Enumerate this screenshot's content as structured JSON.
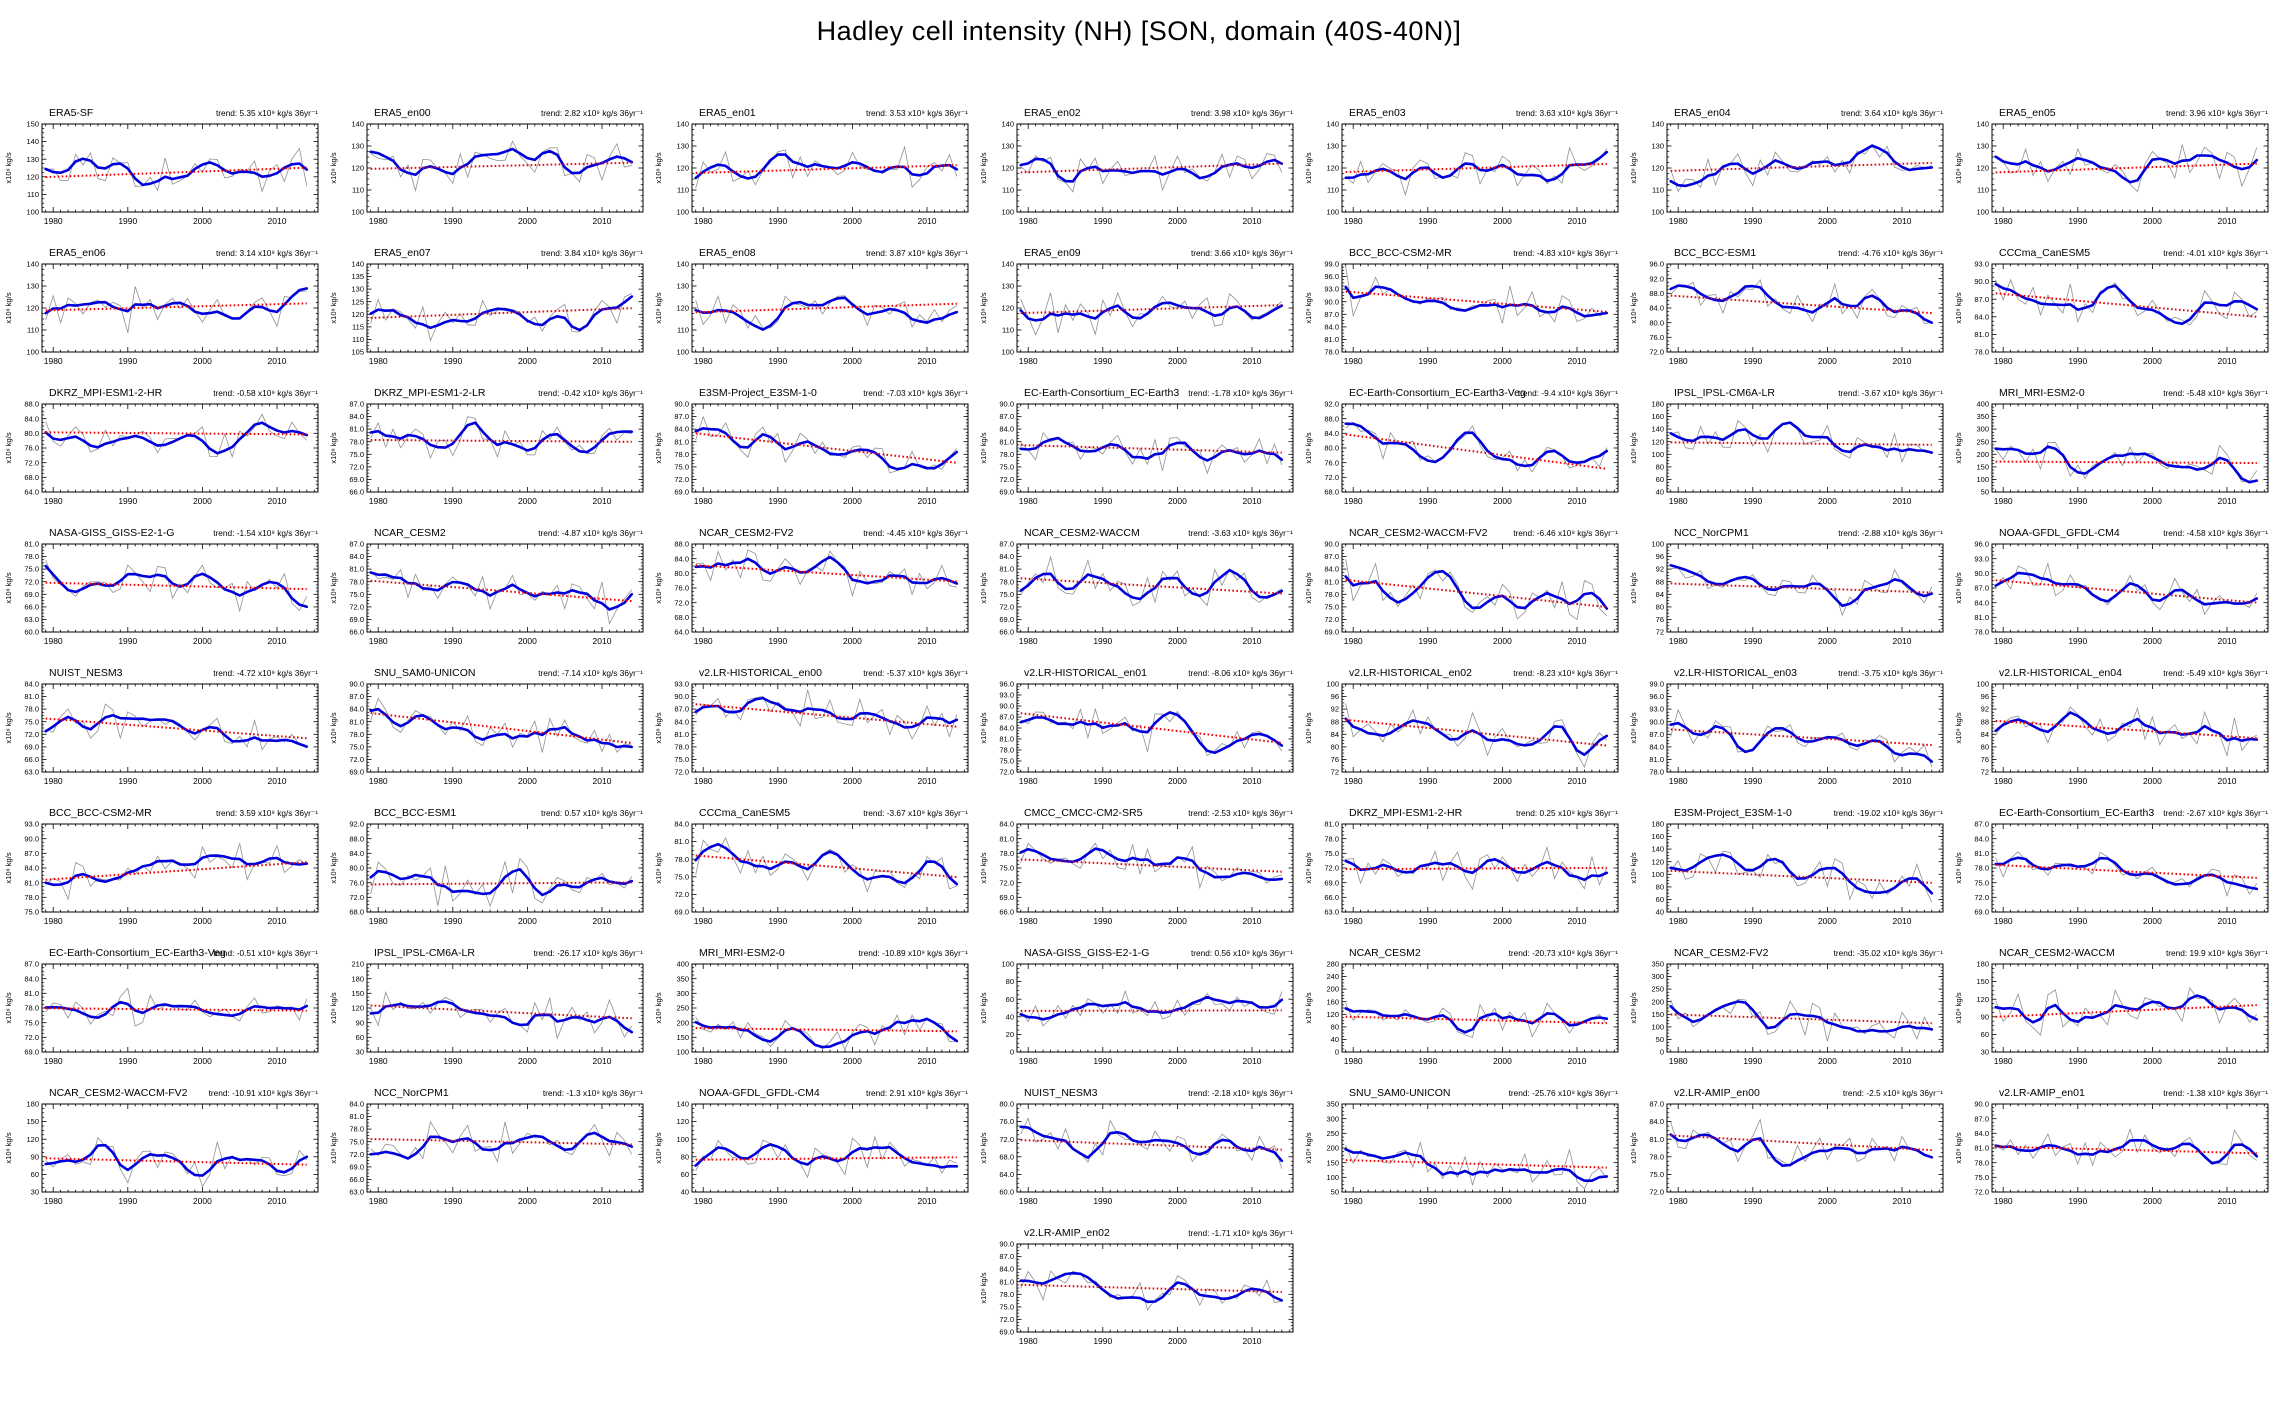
{
  "page_title": "Hadley cell intensity (NH) [SON, domain (40S-40N)]",
  "chart_data": {
    "type": "line",
    "title": "Hadley cell intensity (NH) [SON, domain (40S-40N)]",
    "x_start": 1979,
    "x_end": 2014,
    "x_ticks": [
      1980,
      1990,
      2000,
      2010
    ],
    "y_axis_label": "x10⁹ kg/s",
    "grid": false,
    "series_style": [
      {
        "name": "annual value",
        "color": "#909090",
        "width": "thin"
      },
      {
        "name": "smoothed (running mean)",
        "color": "#0000dd",
        "width": "thick"
      },
      {
        "name": "linear trend",
        "color": "#ee0000",
        "style": "dotted"
      }
    ],
    "panels": [
      {
        "title": "ERA5-SF",
        "trend_label": "trend: 5.35 x10⁹ kg/s 36yr⁻¹",
        "trend": 5.35,
        "mean": 122.5,
        "ymin": 100,
        "ymax": 150,
        "ystep": 10,
        "dec": 0
      },
      {
        "title": "ERA5_en00",
        "trend_label": "trend: 2.82 x10⁹ kg/s 36yr⁻¹",
        "trend": 2.82,
        "mean": 121,
        "ymin": 100,
        "ymax": 140,
        "ystep": 10,
        "dec": 0
      },
      {
        "title": "ERA5_en01",
        "trend_label": "trend: 3.53 x10⁹ kg/s 36yr⁻¹",
        "trend": 3.53,
        "mean": 119.5,
        "ymin": 100,
        "ymax": 140,
        "ystep": 10,
        "dec": 0
      },
      {
        "title": "ERA5_en02",
        "trend_label": "trend: 3.98 x10⁹ kg/s 36yr⁻¹",
        "trend": 3.98,
        "mean": 120,
        "ymin": 100,
        "ymax": 140,
        "ystep": 10,
        "dec": 0
      },
      {
        "title": "ERA5_en03",
        "trend_label": "trend: 3.63 x10⁹ kg/s 36yr⁻¹",
        "trend": 3.63,
        "mean": 120,
        "ymin": 100,
        "ymax": 140,
        "ystep": 10,
        "dec": 0
      },
      {
        "title": "ERA5_en04",
        "trend_label": "trend: 3.64 x10⁹ kg/s 36yr⁻¹",
        "trend": 3.64,
        "mean": 120.5,
        "ymin": 100,
        "ymax": 140,
        "ystep": 10,
        "dec": 0
      },
      {
        "title": "ERA5_en05",
        "trend_label": "trend: 3.96 x10⁹ kg/s 36yr⁻¹",
        "trend": 3.96,
        "mean": 120,
        "ymin": 100,
        "ymax": 140,
        "ystep": 10,
        "dec": 0
      },
      {
        "title": "ERA5_en06",
        "trend_label": "trend: 3.14 x10⁹ kg/s 36yr⁻¹",
        "trend": 3.14,
        "mean": 120.5,
        "ymin": 100,
        "ymax": 140,
        "ystep": 10,
        "dec": 0
      },
      {
        "title": "ERA5_en07",
        "trend_label": "trend: 3.84 x10⁹ kg/s 36yr⁻¹",
        "trend": 3.84,
        "mean": 120.5,
        "ymin": 105,
        "ymax": 140,
        "ystep": 5,
        "dec": 0
      },
      {
        "title": "ERA5_en08",
        "trend_label": "trend: 3.87 x10⁹ kg/s 36yr⁻¹",
        "trend": 3.87,
        "mean": 120,
        "ymin": 100,
        "ymax": 140,
        "ystep": 10,
        "dec": 0
      },
      {
        "title": "ERA5_en09",
        "trend_label": "trend: 3.66 x10⁹ kg/s 36yr⁻¹",
        "trend": 3.66,
        "mean": 119.5,
        "ymin": 100,
        "ymax": 140,
        "ystep": 10,
        "dec": 0
      },
      {
        "title": "BCC_BCC-CSM2-MR",
        "trend_label": "trend: -4.83 x10⁹ kg/s 36yr⁻¹",
        "trend": -4.83,
        "mean": 90,
        "ymin": 78,
        "ymax": 99,
        "ystep": 3,
        "dec": 1
      },
      {
        "title": "BCC_BCC-ESM1",
        "trend_label": "trend: -4.76 x10⁹ kg/s 36yr⁻¹",
        "trend": -4.76,
        "mean": 85,
        "ymin": 72,
        "ymax": 96,
        "ystep": 4,
        "dec": 1
      },
      {
        "title": "CCCma_CanESM5",
        "trend_label": "trend: -4.01 x10⁹ kg/s 36yr⁻¹",
        "trend": -4.01,
        "mean": 86,
        "ymin": 78,
        "ymax": 93,
        "ystep": 3,
        "dec": 1
      },
      {
        "title": "DKRZ_MPI-ESM1-2-HR",
        "trend_label": "trend: -0.58 x10⁹ kg/s 36yr⁻¹",
        "trend": -0.58,
        "mean": 80,
        "ymin": 64,
        "ymax": 88,
        "ystep": 4,
        "dec": 1
      },
      {
        "title": "DKRZ_MPI-ESM1-2-LR",
        "trend_label": "trend: -0.42 x10⁹ kg/s 36yr⁻¹",
        "trend": -0.42,
        "mean": 78.2,
        "ymin": 66,
        "ymax": 87,
        "ystep": 3,
        "dec": 1
      },
      {
        "title": "E3SM-Project_E3SM-1-0",
        "trend_label": "trend: -7.03 x10⁹ kg/s 36yr⁻¹",
        "trend": -7.03,
        "mean": 79.5,
        "ymin": 69,
        "ymax": 90,
        "ystep": 3,
        "dec": 1
      },
      {
        "title": "EC-Earth-Consortium_EC-Earth3",
        "trend_label": "trend: -1.78 x10⁹ kg/s 36yr⁻¹",
        "trend": -1.78,
        "mean": 79.3,
        "ymin": 69,
        "ymax": 90,
        "ystep": 3,
        "dec": 1
      },
      {
        "title": "EC-Earth-Consortium_EC-Earth3-Veg",
        "trend_label": "trend: -9.4 x10⁹ kg/s 36yr⁻¹",
        "trend": -9.4,
        "mean": 79,
        "ymin": 68,
        "ymax": 92,
        "ystep": 4,
        "dec": 1
      },
      {
        "title": "IPSL_IPSL-CM6A-LR",
        "trend_label": "trend: -3.67 x10⁹ kg/s 36yr⁻¹",
        "trend": -3.67,
        "mean": 117,
        "ymin": 40,
        "ymax": 180,
        "ystep": 20,
        "dec": 0
      },
      {
        "title": "MRI_MRI-ESM2-0",
        "trend_label": "trend: -5.48 x10⁹ kg/s 36yr⁻¹",
        "trend": -5.48,
        "mean": 168,
        "ymin": 50,
        "ymax": 400,
        "ystep": 50,
        "dec": 0
      },
      {
        "title": "NASA-GISS_GISS-E2-1-G",
        "trend_label": "trend: -1.54 x10⁹ kg/s 36yr⁻¹",
        "trend": -1.54,
        "mean": 71,
        "ymin": 60,
        "ymax": 81,
        "ystep": 3,
        "dec": 1
      },
      {
        "title": "NCAR_CESM2",
        "trend_label": "trend: -4.87 x10⁹ kg/s 36yr⁻¹",
        "trend": -4.87,
        "mean": 75.8,
        "ymin": 66,
        "ymax": 87,
        "ystep": 3,
        "dec": 1
      },
      {
        "title": "NCAR_CESM2-FV2",
        "trend_label": "trend: -4.45 x10⁹ kg/s 36yr⁻¹",
        "trend": -4.45,
        "mean": 80,
        "ymin": 64,
        "ymax": 88,
        "ystep": 4,
        "dec": 1
      },
      {
        "title": "NCAR_CESM2-WACCM",
        "trend_label": "trend: -3.63 x10⁹ kg/s 36yr⁻¹",
        "trend": -3.63,
        "mean": 77,
        "ymin": 66,
        "ymax": 87,
        "ystep": 3,
        "dec": 1
      },
      {
        "title": "NCAR_CESM2-WACCM-FV2",
        "trend_label": "trend: -6.46 x10⁹ kg/s 36yr⁻¹",
        "trend": -6.46,
        "mean": 78.2,
        "ymin": 69,
        "ymax": 90,
        "ystep": 3,
        "dec": 1
      },
      {
        "title": "NCC_NorCPM1",
        "trend_label": "trend: -2.88 x10⁹ kg/s 36yr⁻¹",
        "trend": -2.88,
        "mean": 86,
        "ymin": 72,
        "ymax": 100,
        "ystep": 4,
        "dec": 0
      },
      {
        "title": "NOAA-GFDL_GFDL-CM4",
        "trend_label": "trend: -4.58 x10⁹ kg/s 36yr⁻¹",
        "trend": -4.58,
        "mean": 86.3,
        "ymin": 78,
        "ymax": 96,
        "ystep": 3,
        "dec": 1
      },
      {
        "title": "NUIST_NESM3",
        "trend_label": "trend: -4.72 x10⁹ kg/s 36yr⁻¹",
        "trend": -4.72,
        "mean": 73.4,
        "ymin": 63,
        "ymax": 84,
        "ystep": 3,
        "dec": 1
      },
      {
        "title": "SNU_SAM0-UNICON",
        "trend_label": "trend: -7.14 x10⁹ kg/s 36yr⁻¹",
        "trend": -7.14,
        "mean": 79.5,
        "ymin": 69,
        "ymax": 90,
        "ystep": 3,
        "dec": 1
      },
      {
        "title": "v2.LR-HISTORICAL_en00",
        "trend_label": "trend: -5.37 x10⁹ kg/s 36yr⁻¹",
        "trend": -5.37,
        "mean": 85.5,
        "ymin": 72,
        "ymax": 93,
        "ystep": 3,
        "dec": 1
      },
      {
        "title": "v2.LR-HISTORICAL_en01",
        "trend_label": "trend: -8.06 x10⁹ kg/s 36yr⁻¹",
        "trend": -8.06,
        "mean": 84,
        "ymin": 72,
        "ymax": 96,
        "ystep": 3,
        "dec": 1
      },
      {
        "title": "v2.LR-HISTORICAL_en02",
        "trend_label": "trend: -8.23 x10⁹ kg/s 36yr⁻¹",
        "trend": -8.23,
        "mean": 84.5,
        "ymin": 72,
        "ymax": 100,
        "ystep": 4,
        "dec": 0
      },
      {
        "title": "v2.LR-HISTORICAL_en03",
        "trend_label": "trend: -3.75 x10⁹ kg/s 36yr⁻¹",
        "trend": -3.75,
        "mean": 86.3,
        "ymin": 78,
        "ymax": 99,
        "ystep": 3,
        "dec": 1
      },
      {
        "title": "v2.LR-HISTORICAL_en04",
        "trend_label": "trend: -5.49 x10⁹ kg/s 36yr⁻¹",
        "trend": -5.49,
        "mean": 85.5,
        "ymin": 72,
        "ymax": 100,
        "ystep": 4,
        "dec": 0
      },
      {
        "title": "BCC_BCC-CSM2-MR",
        "trend_label": "trend: 3.59 x10⁹ kg/s 36yr⁻¹",
        "trend": 3.59,
        "mean": 83.4,
        "ymin": 75,
        "ymax": 93,
        "ystep": 3,
        "dec": 1
      },
      {
        "title": "BCC_BCC-ESM1",
        "trend_label": "trend: 0.57 x10⁹ kg/s 36yr⁻¹",
        "trend": 0.57,
        "mean": 75.8,
        "ymin": 68,
        "ymax": 92,
        "ystep": 4,
        "dec": 1
      },
      {
        "title": "CCCma_CanESM5",
        "trend_label": "trend: -3.67 x10⁹ kg/s 36yr⁻¹",
        "trend": -3.67,
        "mean": 76.8,
        "ymin": 69,
        "ymax": 84,
        "ystep": 3,
        "dec": 1
      },
      {
        "title": "CMCC_CMCC-CM2-SR5",
        "trend_label": "trend: -2.53 x10⁹ kg/s 36yr⁻¹",
        "trend": -2.53,
        "mean": 75.5,
        "ymin": 66,
        "ymax": 84,
        "ystep": 3,
        "dec": 1
      },
      {
        "title": "DKRZ_MPI-ESM1-2-HR",
        "trend_label": "trend: 0.25 x10⁹ kg/s 36yr⁻¹",
        "trend": 0.25,
        "mean": 71.9,
        "ymin": 63,
        "ymax": 81,
        "ystep": 3,
        "dec": 1
      },
      {
        "title": "E3SM-Project_E3SM-1-0",
        "trend_label": "trend: -19.02 x10⁹ kg/s 36yr⁻¹",
        "trend": -19.02,
        "mean": 96,
        "ymin": 40,
        "ymax": 180,
        "ystep": 20,
        "dec": 0
      },
      {
        "title": "EC-Earth-Consortium_EC-Earth3",
        "trend_label": "trend: -2.67 x10⁹ kg/s 36yr⁻¹",
        "trend": -2.67,
        "mean": 77.3,
        "ymin": 69,
        "ymax": 87,
        "ystep": 3,
        "dec": 1
      },
      {
        "title": "EC-Earth-Consortium_EC-Earth3-Veg",
        "trend_label": "trend: -0.51 x10⁹ kg/s 36yr⁻¹",
        "trend": -0.51,
        "mean": 77.7,
        "ymin": 69,
        "ymax": 87,
        "ystep": 3,
        "dec": 1
      },
      {
        "title": "IPSL_IPSL-CM6A-LR",
        "trend_label": "trend: -26.17 x10⁹ kg/s 36yr⁻¹",
        "trend": -26.17,
        "mean": 112,
        "ymin": 30,
        "ymax": 210,
        "ystep": 30,
        "dec": 0
      },
      {
        "title": "MRI_MRI-ESM2-0",
        "trend_label": "trend: -10.89 x10⁹ kg/s 36yr⁻¹",
        "trend": -10.89,
        "mean": 176,
        "ymin": 100,
        "ymax": 400,
        "ystep": 50,
        "dec": 0
      },
      {
        "title": "NASA-GISS_GISS-E2-1-G",
        "trend_label": "trend: 0.56 x10⁹ kg/s 36yr⁻¹",
        "trend": 0.56,
        "mean": 47,
        "ymin": 0,
        "ymax": 100,
        "ystep": 20,
        "dec": 0
      },
      {
        "title": "NCAR_CESM2",
        "trend_label": "trend: -20.73 x10⁹ kg/s 36yr⁻¹",
        "trend": -20.73,
        "mean": 102,
        "ymin": 0,
        "ymax": 280,
        "ystep": 40,
        "dec": 0
      },
      {
        "title": "NCAR_CESM2-FV2",
        "trend_label": "trend: -35.02 x10⁹ kg/s 36yr⁻¹",
        "trend": -35.02,
        "mean": 132,
        "ymin": 0,
        "ymax": 350,
        "ystep": 50,
        "dec": 0
      },
      {
        "title": "NCAR_CESM2-WACCM",
        "trend_label": "trend: 19.9 x10⁹ kg/s 36yr⁻¹",
        "trend": 19.9,
        "mean": 100,
        "ymin": 30,
        "ymax": 180,
        "ystep": 30,
        "dec": 0
      },
      {
        "title": "NCAR_CESM2-WACCM-FV2",
        "trend_label": "trend: -10.91 x10⁹ kg/s 36yr⁻¹",
        "trend": -10.91,
        "mean": 82,
        "ymin": 30,
        "ymax": 180,
        "ystep": 30,
        "dec": 0
      },
      {
        "title": "NCC_NorCPM1",
        "trend_label": "trend: -1.3 x10⁹ kg/s 36yr⁻¹",
        "trend": -1.3,
        "mean": 75,
        "ymin": 63,
        "ymax": 84,
        "ystep": 3,
        "dec": 1
      },
      {
        "title": "NOAA-GFDL_GFDL-CM4",
        "trend_label": "trend: 2.91 x10⁹ kg/s 36yr⁻¹",
        "trend": 2.91,
        "mean": 78,
        "ymin": 40,
        "ymax": 140,
        "ystep": 20,
        "dec": 0
      },
      {
        "title": "NUIST_NESM3",
        "trend_label": "trend: -2.18 x10⁹ kg/s 36yr⁻¹",
        "trend": -2.18,
        "mean": 70.7,
        "ymin": 60,
        "ymax": 80,
        "ystep": 4,
        "dec": 1
      },
      {
        "title": "SNU_SAM0-UNICON",
        "trend_label": "trend: -25.76 x10⁹ kg/s 36yr⁻¹",
        "trend": -25.76,
        "mean": 146,
        "ymin": 50,
        "ymax": 350,
        "ystep": 50,
        "dec": 0
      },
      {
        "title": "v2.LR-AMIP_en00",
        "trend_label": "trend: -2.5 x10⁹ kg/s 36yr⁻¹",
        "trend": -2.5,
        "mean": 80.4,
        "ymin": 72,
        "ymax": 87,
        "ystep": 3,
        "dec": 1
      },
      {
        "title": "v2.LR-AMIP_en01",
        "trend_label": "trend: -1.38 x10⁹ kg/s 36yr⁻¹",
        "trend": -1.38,
        "mean": 80.6,
        "ymin": 72,
        "ymax": 90,
        "ystep": 3,
        "dec": 1
      },
      {
        "title": "v2.LR-AMIP_en02",
        "trend_label": "trend: -1.71 x10⁹ kg/s 36yr⁻¹",
        "trend": -1.71,
        "mean": 79.4,
        "ymin": 69,
        "ymax": 90,
        "ystep": 3,
        "dec": 1
      }
    ]
  }
}
